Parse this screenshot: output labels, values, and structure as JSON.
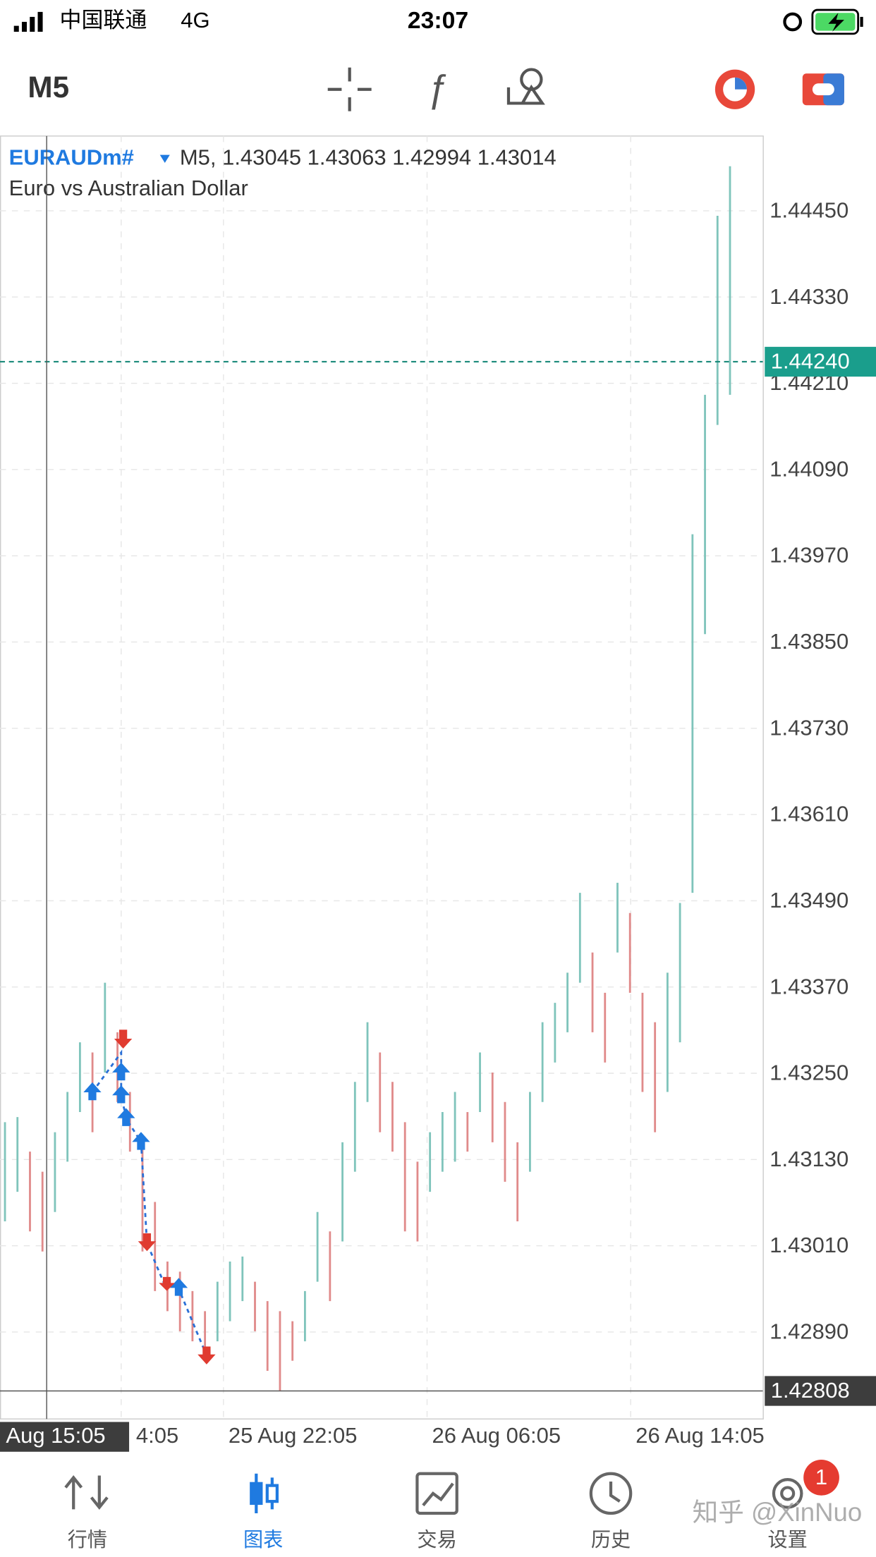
{
  "status_bar": {
    "carrier": "中国联通",
    "network": "4G",
    "time": "23:07"
  },
  "toolbar": {
    "timeframe": "M5"
  },
  "chart": {
    "type": "bar-range",
    "symbol": "EURAUDm#",
    "quote_line": "M5, 1.43045 1.43063 1.42994 1.43014",
    "description": "Euro vs Australian Dollar",
    "ylim": [
      1.42769,
      1.44554
    ],
    "yticks": [
      {
        "value": 1.4445,
        "label": "1.44450"
      },
      {
        "value": 1.4433,
        "label": "1.44330"
      },
      {
        "value": 1.4421,
        "label": "1.44210"
      },
      {
        "value": 1.4409,
        "label": "1.44090"
      },
      {
        "value": 1.4397,
        "label": "1.43970"
      },
      {
        "value": 1.4385,
        "label": "1.43850"
      },
      {
        "value": 1.4373,
        "label": "1.43730"
      },
      {
        "value": 1.4361,
        "label": "1.43610"
      },
      {
        "value": 1.4349,
        "label": "1.43490"
      },
      {
        "value": 1.4337,
        "label": "1.43370"
      },
      {
        "value": 1.4325,
        "label": "1.43250"
      },
      {
        "value": 1.4313,
        "label": "1.43130"
      },
      {
        "value": 1.4301,
        "label": "1.43010"
      },
      {
        "value": 1.4289,
        "label": "1.42890"
      }
    ],
    "current_price": {
      "value": 1.4424,
      "label": "1.44240"
    },
    "crosshair_price": 1.42808,
    "crosshair_time": "Aug 15:05",
    "time_labels": [
      "4:05",
      "25 Aug 22:05",
      "26 Aug 06:05",
      "26 Aug 14:05"
    ],
    "grid": true,
    "up_color": "#7fc4bb",
    "down_color": "#e08a8a",
    "highs": [
      1.43182,
      1.43189,
      1.43141,
      1.43113,
      1.43168,
      1.43224,
      1.43293,
      1.43279,
      1.43376,
      1.43307,
      1.43224,
      1.43154,
      1.43071,
      1.42988,
      1.42974,
      1.42947,
      1.42919,
      1.4296,
      1.42988,
      1.42995,
      1.4296,
      1.42933,
      1.42919,
      1.42905,
      1.42947,
      1.43057,
      1.4303,
      1.43154,
      1.43238,
      1.43321,
      1.43279,
      1.43238,
      1.43182,
      1.43127,
      1.43168,
      1.43196,
      1.43224,
      1.43196,
      1.43279,
      1.43251,
      1.4321,
      1.43154,
      1.43224,
      1.43321,
      1.43348,
      1.4339,
      1.43501,
      1.43418,
      1.43362,
      1.43515,
      1.43473,
      1.43362,
      1.43321,
      1.4339,
      1.43487,
      1.44,
      1.44194,
      1.44443,
      1.44512
    ],
    "lows": [
      1.43044,
      1.43085,
      1.4303,
      1.43002,
      1.43057,
      1.43127,
      1.43196,
      1.43168,
      1.43251,
      1.4321,
      1.43141,
      1.43002,
      1.42947,
      1.42919,
      1.42891,
      1.42877,
      1.4285,
      1.42877,
      1.42905,
      1.42933,
      1.42891,
      1.42836,
      1.42808,
      1.4285,
      1.42877,
      1.4296,
      1.42933,
      1.43016,
      1.43113,
      1.4321,
      1.43168,
      1.43141,
      1.4303,
      1.43016,
      1.43085,
      1.43113,
      1.43127,
      1.43141,
      1.43196,
      1.43154,
      1.43099,
      1.43044,
      1.43113,
      1.4321,
      1.43265,
      1.43307,
      1.43376,
      1.43307,
      1.43265,
      1.43418,
      1.43362,
      1.43224,
      1.43168,
      1.43224,
      1.43293,
      1.43501,
      1.43861,
      1.44152,
      1.44194
    ]
  },
  "tabs": [
    "行情",
    "图表",
    "交易",
    "历史",
    "设置"
  ],
  "badge": "1",
  "watermark": "知乎 @XinNuo"
}
